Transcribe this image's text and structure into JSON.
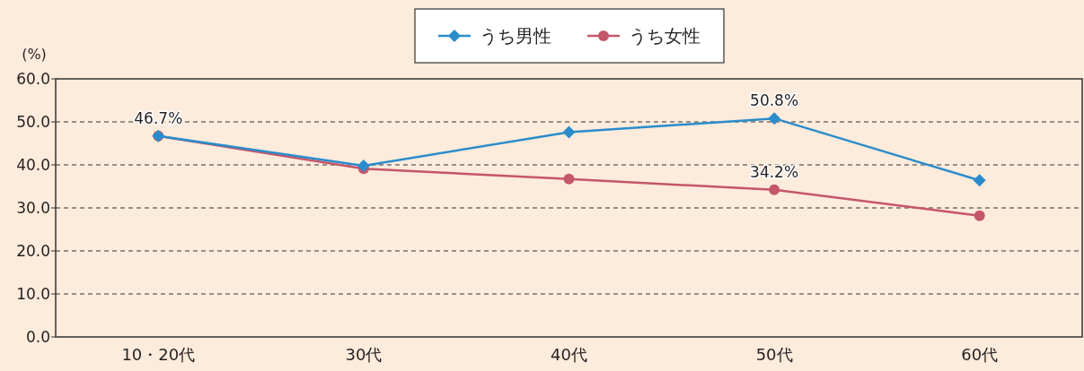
{
  "chart_data": {
    "type": "line",
    "ylabel": "(%)",
    "categories": [
      "10・20代",
      "30代",
      "40代",
      "50代",
      "60代"
    ],
    "series": [
      {
        "name": "うち男性",
        "color": "#2a8ccb",
        "marker": "diamond",
        "values": [
          46.7,
          39.8,
          47.6,
          50.8,
          36.4
        ],
        "value_labels": [
          "46.7%",
          null,
          null,
          "50.8%",
          null
        ]
      },
      {
        "name": "うち女性",
        "color": "#c5566a",
        "marker": "circle",
        "values": [
          46.7,
          39.1,
          36.7,
          34.2,
          28.2
        ],
        "value_labels": [
          null,
          null,
          null,
          "34.2%",
          null
        ]
      }
    ],
    "ylim": [
      0,
      60
    ],
    "yticks": [
      {
        "value": 0,
        "label": "0.0"
      },
      {
        "value": 10,
        "label": "10.0"
      },
      {
        "value": 20,
        "label": "20.0"
      },
      {
        "value": 30,
        "label": "30.0"
      },
      {
        "value": 40,
        "label": "40.0"
      },
      {
        "value": 50,
        "label": "50.0"
      },
      {
        "value": 60,
        "label": "60.0"
      }
    ],
    "grid": "y",
    "legend": "top",
    "line_style": "solid"
  }
}
